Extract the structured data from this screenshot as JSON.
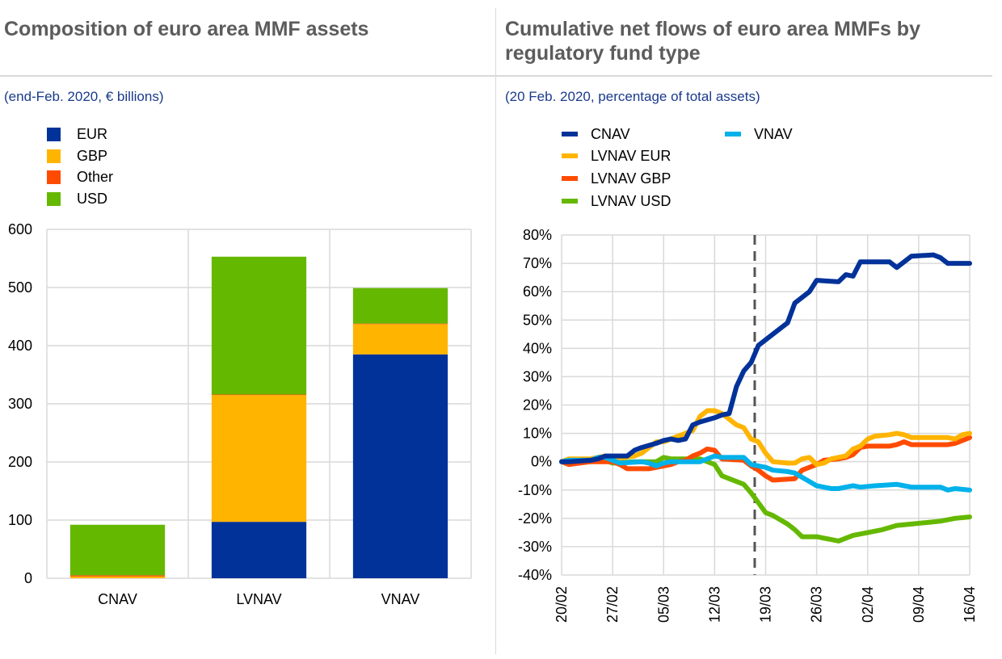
{
  "left": {
    "title": "Composition of euro area MMF assets",
    "subtitle": "(end-Feb. 2020, € billions)"
  },
  "right": {
    "title_line1": "Cumulative net flows of euro area MMFs by",
    "title_line2": "regulatory fund type",
    "subtitle": "(20 Feb. 2020, percentage of total assets)"
  },
  "chart_data": [
    {
      "type": "bar",
      "stacked": true,
      "title": "Composition of euro area MMF assets",
      "subtitle": "(end-Feb. 2020, € billions)",
      "categories": [
        "CNAV",
        "LVNAV",
        "VNAV"
      ],
      "series": [
        {
          "name": "EUR",
          "color": "#003299",
          "values": [
            0,
            97,
            385
          ]
        },
        {
          "name": "GBP",
          "color": "#ffb400",
          "values": [
            3,
            218,
            52
          ]
        },
        {
          "name": "Other",
          "color": "#ff4b00",
          "values": [
            2,
            1,
            1
          ]
        },
        {
          "name": "USD",
          "color": "#65b800",
          "values": [
            87,
            237,
            61
          ]
        }
      ],
      "ylim": [
        0,
        600
      ],
      "yticks": [
        "0",
        "100",
        "200",
        "300",
        "400",
        "500",
        "600"
      ],
      "grid": true,
      "legend": "top-left"
    },
    {
      "type": "line",
      "title": "Cumulative net flows of euro area MMFs by regulatory fund type",
      "subtitle": "(20 Feb. 2020, percentage of total assets)",
      "x_start": "2020-02-20",
      "x_end": "2020-04-16",
      "xticks": [
        "20/02",
        "27/02",
        "05/03",
        "12/03",
        "19/03",
        "26/03",
        "02/04",
        "09/04",
        "16/04"
      ],
      "yticks": [
        "-40%",
        "-30%",
        "-20%",
        "-10%",
        "0%",
        "10%",
        "20%",
        "30%",
        "40%",
        "50%",
        "60%",
        "70%",
        "80%"
      ],
      "ylim": [
        -40,
        80
      ],
      "grid": true,
      "legend": "top",
      "annotation": {
        "type": "vertical-dashed-line",
        "x_day": 26.5
      },
      "series": [
        {
          "name": "CNAV",
          "color": "#003299",
          "points": [
            [
              0,
              0
            ],
            [
              1,
              0
            ],
            [
              4,
              0.5
            ],
            [
              5,
              1
            ],
            [
              6,
              2
            ],
            [
              9,
              2
            ],
            [
              10,
              4
            ],
            [
              11,
              5
            ],
            [
              13,
              6.5
            ],
            [
              14,
              7.5
            ],
            [
              15,
              8
            ],
            [
              16,
              7.5
            ],
            [
              17,
              8
            ],
            [
              18,
              13
            ],
            [
              19,
              14
            ],
            [
              21,
              15.5
            ],
            [
              22,
              16.5
            ],
            [
              23,
              17
            ],
            [
              24,
              26.5
            ],
            [
              25,
              32
            ],
            [
              26,
              35
            ],
            [
              27,
              41
            ],
            [
              29,
              45
            ],
            [
              31,
              49
            ],
            [
              32,
              56
            ],
            [
              33,
              58
            ],
            [
              34,
              60
            ],
            [
              35,
              64
            ],
            [
              38,
              63.5
            ],
            [
              39,
              66
            ],
            [
              40,
              65.5
            ],
            [
              41,
              70.5
            ],
            [
              45,
              70.5
            ],
            [
              46,
              68.5
            ],
            [
              48,
              72.5
            ],
            [
              51,
              73
            ],
            [
              52,
              72
            ],
            [
              53,
              70
            ],
            [
              56,
              70
            ]
          ]
        },
        {
          "name": "LVNAV EUR",
          "color": "#ffb400",
          "points": [
            [
              0,
              0
            ],
            [
              1,
              1
            ],
            [
              4,
              1
            ],
            [
              6,
              2
            ],
            [
              7,
              1
            ],
            [
              10,
              2
            ],
            [
              11,
              3
            ],
            [
              13,
              7
            ],
            [
              14,
              7
            ],
            [
              15,
              8
            ],
            [
              17,
              10
            ],
            [
              18,
              11
            ],
            [
              19,
              16
            ],
            [
              20,
              18
            ],
            [
              21,
              18
            ],
            [
              22,
              17
            ],
            [
              24,
              13
            ],
            [
              25,
              12
            ],
            [
              26,
              8
            ],
            [
              27,
              7
            ],
            [
              28,
              3
            ],
            [
              29,
              0
            ],
            [
              31,
              -0.5
            ],
            [
              32,
              -0.5
            ],
            [
              33,
              1
            ],
            [
              34,
              1.5
            ],
            [
              35,
              -1
            ],
            [
              36,
              -0.5
            ],
            [
              37,
              1
            ],
            [
              39,
              2
            ],
            [
              40,
              4.5
            ],
            [
              41,
              5.5
            ],
            [
              42,
              8
            ],
            [
              43,
              9
            ],
            [
              45,
              9.5
            ],
            [
              46,
              10
            ],
            [
              47,
              9.5
            ],
            [
              48,
              8.5
            ],
            [
              53,
              8.5
            ],
            [
              54,
              8
            ],
            [
              55,
              9.5
            ],
            [
              56,
              10
            ]
          ]
        },
        {
          "name": "LVNAV GBP",
          "color": "#ff4b00",
          "points": [
            [
              0,
              0
            ],
            [
              1,
              -1
            ],
            [
              4,
              0
            ],
            [
              7,
              0
            ],
            [
              8,
              -1
            ],
            [
              9,
              -2.5
            ],
            [
              12,
              -2.5
            ],
            [
              14,
              -1.5
            ],
            [
              15,
              -1
            ],
            [
              16,
              0
            ],
            [
              17,
              0.5
            ],
            [
              18,
              2
            ],
            [
              19,
              3
            ],
            [
              20,
              4.5
            ],
            [
              21,
              4
            ],
            [
              22,
              1
            ],
            [
              25,
              0.5
            ],
            [
              26,
              -1.5
            ],
            [
              27,
              -3
            ],
            [
              28,
              -5
            ],
            [
              29,
              -6.5
            ],
            [
              32,
              -6
            ],
            [
              33,
              -3
            ],
            [
              34,
              -2
            ],
            [
              35,
              -1
            ],
            [
              36,
              0.5
            ],
            [
              38,
              1
            ],
            [
              39,
              1.5
            ],
            [
              40,
              2.5
            ],
            [
              41,
              5
            ],
            [
              42,
              5.5
            ],
            [
              45,
              5.5
            ],
            [
              46,
              6
            ],
            [
              47,
              7
            ],
            [
              48,
              6
            ],
            [
              53,
              6
            ],
            [
              54,
              6.5
            ],
            [
              55,
              7.5
            ],
            [
              56,
              8.5
            ]
          ]
        },
        {
          "name": "LVNAV USD",
          "color": "#65b800",
          "points": [
            [
              0,
              0
            ],
            [
              1,
              -0.5
            ],
            [
              4,
              0
            ],
            [
              5,
              1
            ],
            [
              6,
              0.5
            ],
            [
              7,
              -0.5
            ],
            [
              10,
              0
            ],
            [
              13,
              0
            ],
            [
              14,
              1.5
            ],
            [
              15,
              1
            ],
            [
              17,
              1
            ],
            [
              19,
              1
            ],
            [
              20,
              0
            ],
            [
              21,
              -1
            ],
            [
              22,
              -5
            ],
            [
              23,
              -6
            ],
            [
              24,
              -7
            ],
            [
              25,
              -8
            ],
            [
              26,
              -11
            ],
            [
              27,
              -14.5
            ],
            [
              28,
              -18
            ],
            [
              29,
              -19
            ],
            [
              31,
              -22
            ],
            [
              32,
              -24
            ],
            [
              33,
              -26.5
            ],
            [
              35,
              -26.5
            ],
            [
              37,
              -27.5
            ],
            [
              38,
              -28
            ],
            [
              39,
              -27
            ],
            [
              40,
              -26
            ],
            [
              42,
              -25
            ],
            [
              44,
              -24
            ],
            [
              46,
              -22.5
            ],
            [
              48,
              -22
            ],
            [
              50,
              -21.5
            ],
            [
              52,
              -21
            ],
            [
              53,
              -20.5
            ],
            [
              54,
              -20
            ],
            [
              56,
              -19.5
            ]
          ]
        },
        {
          "name": "VNAV",
          "color": "#00b1ea",
          "points": [
            [
              0,
              0
            ],
            [
              1,
              0.5
            ],
            [
              4,
              0.5
            ],
            [
              5,
              1.5
            ],
            [
              6,
              1.5
            ],
            [
              7,
              0.5
            ],
            [
              8,
              -0.5
            ],
            [
              11,
              0
            ],
            [
              12,
              -0.5
            ],
            [
              13,
              -1.5
            ],
            [
              14,
              -0.5
            ],
            [
              15,
              0
            ],
            [
              19,
              0
            ],
            [
              20,
              1
            ],
            [
              21,
              2
            ],
            [
              22,
              1.5
            ],
            [
              25,
              1.5
            ],
            [
              26,
              -1
            ],
            [
              27,
              -1.5
            ],
            [
              28,
              -2
            ],
            [
              29,
              -3
            ],
            [
              31,
              -3.5
            ],
            [
              32,
              -4
            ],
            [
              33,
              -5.5
            ],
            [
              34,
              -7
            ],
            [
              35,
              -8.5
            ],
            [
              37,
              -9.5
            ],
            [
              38,
              -9.5
            ],
            [
              39,
              -9
            ],
            [
              40,
              -8.5
            ],
            [
              41,
              -9
            ],
            [
              43,
              -8.5
            ],
            [
              46,
              -8
            ],
            [
              47,
              -8.5
            ],
            [
              48,
              -9
            ],
            [
              51,
              -9
            ],
            [
              52,
              -9
            ],
            [
              53,
              -10
            ],
            [
              54,
              -9.5
            ],
            [
              56,
              -10
            ]
          ]
        }
      ]
    }
  ]
}
